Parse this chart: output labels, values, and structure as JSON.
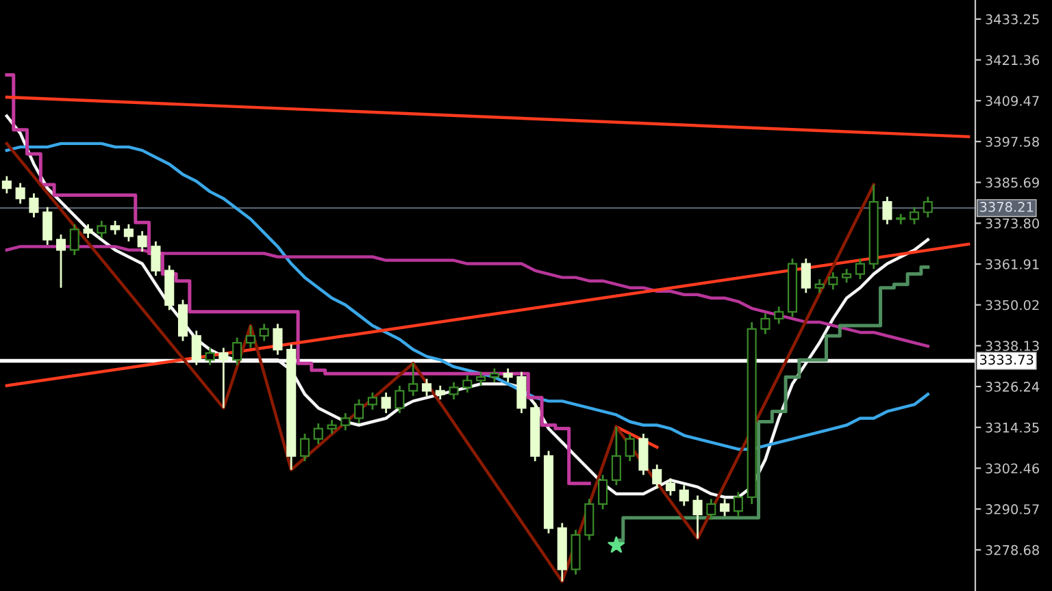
{
  "chart_data": {
    "type": "candlestick",
    "categories": [
      null,
      null,
      null,
      null,
      null,
      null,
      null,
      null,
      null,
      null,
      null,
      null,
      null,
      null,
      null,
      null,
      null,
      null,
      null,
      null,
      null,
      null,
      null,
      null,
      null,
      null,
      null,
      null,
      null,
      null,
      null,
      null,
      null,
      null,
      null,
      null,
      null,
      null,
      null,
      null,
      null,
      null,
      null,
      null,
      null,
      null,
      null,
      null,
      null,
      null,
      null,
      null,
      null,
      null,
      null,
      null,
      null,
      null,
      null,
      null,
      null,
      null,
      null,
      null,
      null,
      null,
      null,
      null,
      null,
      null,
      null,
      null
    ],
    "colors": [
      "#e6ffcc",
      "#e6ffcc",
      "#e6ffcc",
      "#e6ffcc",
      "#e6ffcc",
      "#3a8a28",
      "#e6ffcc",
      "#3a8a28",
      "#e6ffcc",
      "#e6ffcc",
      "#e6ffcc",
      "#e6ffcc",
      "#e6ffcc",
      "#e6ffcc",
      "#e6ffcc",
      "#3a8a28",
      "#e6ffcc",
      "#3a8a28",
      "#3a8a28",
      "#3a8a28",
      "#e6ffcc",
      "#e6ffcc",
      "#3a8a28",
      "#3a8a28",
      "#3a8a28",
      "#3a8a28",
      "#3a8a28",
      "#3a8a28",
      "#e6ffcc",
      "#3a8a28",
      "#3a8a28",
      "#e6ffcc",
      "#e6ffcc",
      "#3a8a28",
      "#3a8a28",
      "#3a8a28",
      "#3a8a28",
      "#e6ffcc",
      "#e6ffcc",
      "#e6ffcc",
      "#e6ffcc",
      "#e6ffcc",
      "#3a8a28",
      "#3a8a28",
      "#3a8a28",
      "#3a8a28",
      "#3a8a28",
      "#e6ffcc",
      "#e6ffcc",
      "#e6ffcc",
      "#e6ffcc",
      "#e6ffcc",
      "#3a8a28",
      "#e6ffcc",
      "#3a8a28",
      "#3a8a28",
      "#3a8a28",
      "#3a8a28",
      "#3a8a28",
      "#e6ffcc",
      "#3a8a28",
      "#3a8a28",
      "#3a8a28",
      "#3a8a28",
      "#3a8a28",
      "#e6ffcc",
      "#3a8a28",
      "#3a8a28",
      "#3a8a28",
      null,
      null,
      null
    ],
    "ohlc": [
      [
        3386,
        3387.5,
        3382.5,
        3384
      ],
      [
        3384,
        3385.5,
        3379.5,
        3381
      ],
      [
        3381,
        3382.5,
        3375.5,
        3377
      ],
      [
        3377,
        3378.5,
        3367.5,
        3369
      ],
      [
        3369,
        3370.5,
        3355,
        3366
      ],
      [
        3366,
        3373.5,
        3364.5,
        3372
      ],
      [
        3372,
        3373.5,
        3369.5,
        3371
      ],
      [
        3371,
        3374.5,
        3369.5,
        3373
      ],
      [
        3373,
        3374.5,
        3370.5,
        3372
      ],
      [
        3372,
        3373.5,
        3368.5,
        3370
      ],
      [
        3370,
        3371.5,
        3365.5,
        3367
      ],
      [
        3367,
        3368.5,
        3358.5,
        3360
      ],
      [
        3360,
        3361.5,
        3348.5,
        3350
      ],
      [
        3350,
        3351.5,
        3339.5,
        3341
      ],
      [
        3341,
        3342.5,
        3332.5,
        3334
      ],
      [
        3334,
        3337.5,
        3332.5,
        3336
      ],
      [
        3336,
        3337.5,
        3320,
        3334
      ],
      [
        3334,
        3340.5,
        3332.5,
        3339
      ],
      [
        3339,
        3344,
        3337.5,
        3341
      ],
      [
        3341,
        3344.5,
        3339.5,
        3343
      ],
      [
        3343,
        3344.5,
        3335.5,
        3337
      ],
      [
        3337,
        3338.5,
        3302,
        3306
      ],
      [
        3306,
        3312.5,
        3304.5,
        3311
      ],
      [
        3311,
        3315.5,
        3309.5,
        3314
      ],
      [
        3314,
        3316.5,
        3312.5,
        3315
      ],
      [
        3315,
        3318.5,
        3313.5,
        3317
      ],
      [
        3317,
        3322.5,
        3315.5,
        3321
      ],
      [
        3321,
        3324.5,
        3319.5,
        3323
      ],
      [
        3323,
        3324.5,
        3318.5,
        3320
      ],
      [
        3320,
        3326.5,
        3318.5,
        3325
      ],
      [
        3325,
        3333,
        3323.5,
        3327
      ],
      [
        3327,
        3328.5,
        3323.5,
        3325
      ],
      [
        3325,
        3326.5,
        3322.5,
        3324
      ],
      [
        3324,
        3327.5,
        3322.5,
        3326
      ],
      [
        3326,
        3329.5,
        3324.5,
        3328
      ],
      [
        3328,
        3330.5,
        3326.5,
        3329
      ],
      [
        3329,
        3331.5,
        3327.5,
        3330
      ],
      [
        3330,
        3331.5,
        3327.5,
        3329
      ],
      [
        3329,
        3330.5,
        3318.5,
        3320
      ],
      [
        3320,
        3321.5,
        3304.5,
        3306
      ],
      [
        3306,
        3307.5,
        3283.5,
        3285
      ],
      [
        3285,
        3286.5,
        3269.5,
        3273
      ],
      [
        3273,
        3284.5,
        3271.5,
        3283
      ],
      [
        3283,
        3293.5,
        3281.5,
        3292
      ],
      [
        3292,
        3300.5,
        3290.5,
        3299
      ],
      [
        3299,
        3314.5,
        3297.5,
        3306
      ],
      [
        3306,
        3312.5,
        3304.5,
        3311
      ],
      [
        3311,
        3312.5,
        3300.5,
        3302
      ],
      [
        3302,
        3303.5,
        3296.5,
        3298
      ],
      [
        3298,
        3299.5,
        3294.5,
        3296
      ],
      [
        3296,
        3297.5,
        3291.5,
        3293
      ],
      [
        3293,
        3294.5,
        3282,
        3289
      ],
      [
        3289,
        3293.5,
        3287.5,
        3292
      ],
      [
        3292,
        3293.5,
        3288.5,
        3290
      ],
      [
        3290,
        3295.5,
        3288.5,
        3294
      ],
      [
        3294,
        3345,
        3292,
        3343
      ],
      [
        3343,
        3347.5,
        3341.5,
        3346
      ],
      [
        3346,
        3349.5,
        3344.5,
        3348
      ],
      [
        3348,
        3363.5,
        3346.5,
        3362
      ],
      [
        3362,
        3363.5,
        3353.5,
        3355
      ],
      [
        3355,
        3357.5,
        3353.5,
        3356
      ],
      [
        3356,
        3359.5,
        3354.5,
        3358
      ],
      [
        3358,
        3360.5,
        3356.5,
        3359
      ],
      [
        3359,
        3363.5,
        3357.5,
        3362
      ],
      [
        3362,
        3385,
        3360.5,
        3380
      ],
      [
        3380,
        3381.5,
        3373.5,
        3375
      ],
      [
        3375,
        3376.5,
        3373.5,
        3375
      ],
      [
        3375,
        3378.5,
        3373.5,
        3377
      ],
      [
        3377,
        3381.5,
        3375.5,
        3380
      ],
      null,
      null,
      null
    ],
    "series": [
      {
        "type": "line",
        "color": "#f5f5f5",
        "values": [
          3405,
          3400,
          3391,
          3384,
          3380,
          3376,
          3372,
          3369,
          3366,
          3364,
          3362,
          3356,
          3350,
          3345,
          3340,
          3337,
          3335,
          3334,
          3334,
          3334,
          3334,
          3331,
          3324,
          3320,
          3318,
          3316,
          3315,
          3316,
          3317,
          3320,
          3322,
          3323,
          3324,
          3325,
          3326,
          3327,
          3327,
          3327,
          3326,
          3321,
          3314,
          3310,
          3306,
          3302,
          3298,
          3295,
          3295,
          3295,
          3297,
          3299,
          3298,
          3297,
          3295,
          3294,
          3294,
          3297,
          3305,
          3317,
          3327,
          3333,
          3339,
          3346,
          3352,
          3355,
          3359,
          3362,
          3364,
          3366,
          3369,
          null,
          null,
          null
        ]
      },
      {
        "type": "line",
        "color": "#3aa8e8",
        "values": [
          3395,
          3396,
          3396,
          3396,
          3397,
          3397,
          3397,
          3397,
          3396,
          3396,
          3395,
          3393,
          3391,
          3388,
          3386,
          3383,
          3381,
          3378,
          3375,
          3371,
          3367,
          3362,
          3358,
          3355,
          3352,
          3350,
          3347,
          3344,
          3342,
          3340,
          3337,
          3335,
          3334,
          3332,
          3331,
          3330,
          3329,
          3327,
          3325,
          3323,
          3322,
          3322,
          3321,
          3320,
          3319,
          3318,
          3316,
          3315,
          3315,
          3314,
          3312,
          3311,
          3310,
          3309,
          3308,
          3308,
          3309,
          3310,
          3311,
          3312,
          3313,
          3314,
          3315,
          3317,
          3317,
          3319,
          3320,
          3321,
          3324,
          null,
          null,
          null
        ]
      },
      {
        "type": "line",
        "color": "#b8369a",
        "values": [
          3366,
          3367,
          3367,
          3367,
          3367,
          3367,
          3367,
          3367,
          3367,
          3366,
          3366,
          3365,
          3365,
          3365,
          3365,
          3365,
          3365,
          3365,
          3365,
          3365,
          3364,
          3364,
          3364,
          3364,
          3364,
          3364,
          3364,
          3364,
          3363,
          3363,
          3363,
          3363,
          3363,
          3363,
          3362,
          3362,
          3362,
          3362,
          3362,
          3360,
          3359,
          3358,
          3358,
          3357,
          3357,
          3356,
          3355,
          3355,
          3354,
          3354,
          3353,
          3353,
          3352,
          3352,
          3351,
          3349,
          3348,
          3347,
          3346,
          3345,
          3345,
          3344,
          3343,
          3342,
          3342,
          3341,
          3340,
          3339,
          3338,
          null,
          null,
          null
        ]
      },
      {
        "type": "step",
        "color": "#c23a9e",
        "values": [
          3417,
          3401,
          3394,
          3385,
          3382,
          3382,
          3382,
          3382,
          3382,
          3382,
          3374,
          3365,
          3359,
          3357,
          3348,
          3348,
          3348,
          3348,
          3348,
          3348,
          3348,
          3348,
          3333,
          3331,
          3330,
          3330,
          3330,
          3330,
          3330,
          3330,
          3330,
          3330,
          3330,
          3330,
          3330,
          3330,
          3330,
          3330,
          3330,
          3323,
          3315,
          3314,
          3298,
          3298,
          null,
          null,
          null,
          null,
          null,
          null,
          null,
          null,
          null,
          null,
          null,
          null,
          null,
          null,
          null,
          null,
          null,
          null,
          null,
          null,
          null,
          null,
          null,
          null,
          null,
          null,
          null,
          null
        ]
      },
      {
        "type": "step",
        "color": "#4f8f5f",
        "values": [
          null,
          null,
          null,
          null,
          null,
          null,
          null,
          null,
          null,
          null,
          null,
          null,
          null,
          null,
          null,
          null,
          null,
          null,
          null,
          null,
          null,
          null,
          null,
          null,
          null,
          null,
          null,
          null,
          null,
          null,
          null,
          null,
          null,
          null,
          null,
          null,
          null,
          null,
          null,
          null,
          null,
          null,
          null,
          null,
          null,
          3281.5,
          3288,
          3288,
          3288,
          3288,
          3288,
          3288,
          3288,
          3288,
          3288,
          3288,
          3316,
          3319,
          3329,
          3334,
          3334,
          3341,
          3344,
          3344,
          3344,
          3355,
          3356,
          3359,
          3361,
          null,
          null,
          null
        ]
      },
      {
        "type": "scatter",
        "marker": "star",
        "color": "#5fe08a",
        "values": [
          null,
          null,
          null,
          null,
          null,
          null,
          null,
          null,
          null,
          null,
          null,
          null,
          null,
          null,
          null,
          null,
          null,
          null,
          null,
          null,
          null,
          null,
          null,
          null,
          null,
          null,
          null,
          null,
          null,
          null,
          null,
          null,
          null,
          null,
          null,
          null,
          null,
          null,
          null,
          null,
          null,
          null,
          null,
          null,
          null,
          3280,
          null,
          null,
          null,
          null,
          null,
          null,
          null,
          null,
          null,
          null,
          null,
          null,
          null,
          null,
          null,
          null,
          null,
          null,
          null,
          null,
          null,
          null,
          null,
          null,
          null,
          null
        ]
      },
      {
        "type": "line",
        "color": "#ff3b1f",
        "values": [
          3410.5,
          null,
          null,
          null,
          null,
          null,
          null,
          null,
          null,
          null,
          null,
          null,
          null,
          null,
          null,
          null,
          null,
          null,
          null,
          null,
          null,
          null,
          null,
          null,
          null,
          null,
          null,
          null,
          null,
          null,
          null,
          null,
          null,
          null,
          null,
          null,
          null,
          null,
          null,
          null,
          null,
          null,
          null,
          null,
          null,
          null,
          null,
          null,
          null,
          null,
          null,
          null,
          null,
          null,
          null,
          null,
          null,
          null,
          null,
          null,
          null,
          null,
          null,
          null,
          null,
          null,
          null,
          null,
          null,
          null,
          null,
          3399
        ]
      },
      {
        "type": "line",
        "color": "#ff3b1f",
        "values": [
          3326.5,
          null,
          null,
          null,
          null,
          null,
          null,
          null,
          null,
          null,
          null,
          null,
          null,
          null,
          null,
          null,
          null,
          null,
          null,
          null,
          null,
          null,
          null,
          null,
          null,
          null,
          null,
          null,
          null,
          null,
          null,
          null,
          null,
          null,
          null,
          null,
          null,
          null,
          null,
          null,
          null,
          null,
          null,
          null,
          null,
          null,
          null,
          null,
          null,
          null,
          null,
          null,
          null,
          null,
          null,
          null,
          null,
          null,
          null,
          null,
          null,
          null,
          null,
          null,
          null,
          null,
          null,
          null,
          null,
          null,
          null,
          3367.7
        ]
      },
      {
        "type": "line",
        "color": "#ff3b1f",
        "values": [
          null,
          null,
          null,
          null,
          null,
          null,
          null,
          null,
          null,
          null,
          null,
          null,
          null,
          null,
          null,
          null,
          null,
          null,
          null,
          null,
          null,
          null,
          null,
          null,
          null,
          null,
          null,
          null,
          null,
          null,
          null,
          null,
          null,
          null,
          null,
          null,
          null,
          null,
          null,
          null,
          null,
          null,
          null,
          null,
          null,
          3314.5,
          null,
          null,
          3308.6,
          null,
          null,
          null,
          null,
          null,
          null,
          null,
          null,
          null,
          null,
          null,
          null,
          null,
          null,
          null,
          null,
          null,
          null,
          null,
          null,
          null,
          null,
          null
        ]
      },
      {
        "type": "line",
        "color": "#8b1a00",
        "values": [
          3397,
          null,
          null,
          null,
          null,
          null,
          null,
          null,
          null,
          null,
          null,
          null,
          null,
          null,
          null,
          null,
          3320,
          null,
          3344,
          null,
          null,
          3302,
          null,
          null,
          null,
          null,
          null,
          null,
          null,
          null,
          3333,
          null,
          null,
          null,
          null,
          null,
          null,
          null,
          null,
          null,
          null,
          3269.5,
          null,
          null,
          null,
          3314.5,
          null,
          null,
          null,
          null,
          null,
          3282,
          null,
          null,
          null,
          null,
          null,
          null,
          null,
          null,
          null,
          null,
          null,
          null,
          3385,
          null,
          null,
          null,
          null,
          null,
          null,
          null
        ]
      }
    ],
    "ylim": [
      3266.7,
      3438.8
    ],
    "yticks": [
      3433.25,
      3421.36,
      3409.47,
      3397.58,
      3385.69,
      {
        "value": 3373.8,
        "label": "3373.80"
      },
      3361.91,
      {
        "value": 3350.02,
        "label": "3350.02"
      },
      3338.13,
      3326.24,
      3314.35,
      3302.46,
      3290.57,
      3278.68
    ],
    "ref_lines": [
      {
        "axis": "y",
        "value": 3378.21,
        "label": "3378.21",
        "color": "#5a6270"
      },
      {
        "axis": "y",
        "value": 3333.73,
        "label": "3333.73",
        "color": "#ffffff"
      }
    ],
    "tick_labels": "y",
    "grid": false,
    "legend": false
  }
}
